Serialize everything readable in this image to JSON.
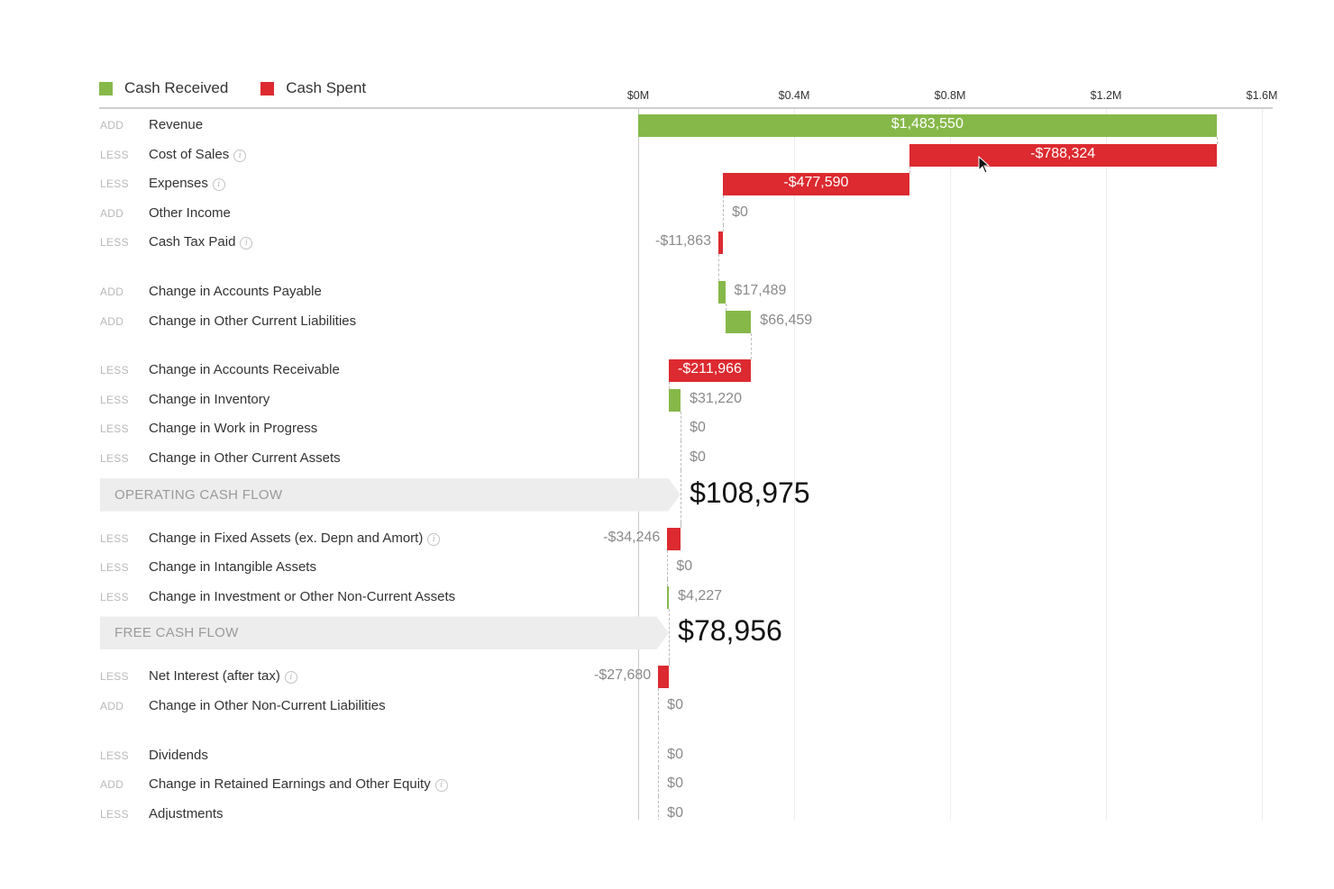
{
  "colors": {
    "received": "#86b849",
    "spent": "#dc2a30",
    "band": "#ededed"
  },
  "cursor_icon": "mouse-pointer-icon",
  "chart_data": {
    "type": "waterfall",
    "orientation": "horizontal",
    "legend": {
      "placement": "top-left",
      "items": [
        {
          "name": "Cash Received",
          "color": "#86b849"
        },
        {
          "name": "Cash Spent",
          "color": "#dc2a30"
        }
      ]
    },
    "x_axis": {
      "ticks": [
        "$0M",
        "$0.4M",
        "$0.8M",
        "$1.2M",
        "$1.6M"
      ],
      "tick_values": [
        0,
        400000,
        800000,
        1200000,
        1600000
      ],
      "range": [
        0,
        1600000
      ],
      "grid": true
    },
    "rows": [
      {
        "kind": "item",
        "op": "ADD",
        "name": "Revenue",
        "info": false,
        "value": 1483550,
        "label": "$1,483,550",
        "start": 0,
        "end": 1483550,
        "label_pos": "inside",
        "group_gap_after": false
      },
      {
        "kind": "item",
        "op": "LESS",
        "name": "Cost of Sales",
        "info": true,
        "value": -788324,
        "label": "-$788,324",
        "start": 1483550,
        "end": 695226,
        "label_pos": "inside",
        "group_gap_after": false
      },
      {
        "kind": "item",
        "op": "LESS",
        "name": "Expenses",
        "info": true,
        "value": -477590,
        "label": "-$477,590",
        "start": 695226,
        "end": 217636,
        "label_pos": "inside",
        "group_gap_after": false
      },
      {
        "kind": "item",
        "op": "ADD",
        "name": "Other Income",
        "info": false,
        "value": 0,
        "label": "$0",
        "start": 217636,
        "end": 217636,
        "label_pos": "right",
        "group_gap_after": false
      },
      {
        "kind": "item",
        "op": "LESS",
        "name": "Cash Tax Paid",
        "info": true,
        "value": -11863,
        "label": "-$11,863",
        "start": 217636,
        "end": 205773,
        "label_pos": "left",
        "group_gap_after": true
      },
      {
        "kind": "item",
        "op": "ADD",
        "name": "Change in Accounts Payable",
        "info": false,
        "value": 17489,
        "label": "$17,489",
        "start": 205773,
        "end": 223262,
        "label_pos": "right",
        "group_gap_after": false
      },
      {
        "kind": "item",
        "op": "ADD",
        "name": "Change in Other Current Liabilities",
        "info": false,
        "value": 66459,
        "label": "$66,459",
        "start": 223262,
        "end": 289721,
        "label_pos": "right",
        "group_gap_after": true
      },
      {
        "kind": "item",
        "op": "LESS",
        "name": "Change in Accounts Receivable",
        "info": false,
        "value": -211966,
        "label": "-$211,966",
        "start": 289721,
        "end": 77755,
        "label_pos": "inside",
        "group_gap_after": false
      },
      {
        "kind": "item",
        "op": "LESS",
        "name": "Change in Inventory",
        "info": false,
        "value": 31220,
        "label": "$31,220",
        "start": 77755,
        "end": 108975,
        "label_pos": "right",
        "group_gap_after": false
      },
      {
        "kind": "item",
        "op": "LESS",
        "name": "Change in Work in Progress",
        "info": false,
        "value": 0,
        "label": "$0",
        "start": 108975,
        "end": 108975,
        "label_pos": "right",
        "group_gap_after": false
      },
      {
        "kind": "item",
        "op": "LESS",
        "name": "Change in Other Current Assets",
        "info": false,
        "value": 0,
        "label": "$0",
        "start": 108975,
        "end": 108975,
        "label_pos": "right",
        "group_gap_after": false
      },
      {
        "kind": "subtotal",
        "name": "OPERATING CASH FLOW",
        "value": 108975,
        "label": "$108,975"
      },
      {
        "kind": "item",
        "op": "LESS",
        "name": "Change in Fixed Assets (ex. Depn and Amort)",
        "info": true,
        "value": -34246,
        "label": "-$34,246",
        "start": 108975,
        "end": 74729,
        "label_pos": "left",
        "group_gap_after": false
      },
      {
        "kind": "item",
        "op": "LESS",
        "name": "Change in Intangible Assets",
        "info": false,
        "value": 0,
        "label": "$0",
        "start": 74729,
        "end": 74729,
        "label_pos": "right",
        "group_gap_after": false
      },
      {
        "kind": "item",
        "op": "LESS",
        "name": "Change in Investment or Other Non-Current Assets",
        "info": false,
        "value": 4227,
        "label": "$4,227",
        "start": 74729,
        "end": 78956,
        "label_pos": "right",
        "group_gap_after": false
      },
      {
        "kind": "subtotal",
        "name": "FREE CASH FLOW",
        "value": 78956,
        "label": "$78,956"
      },
      {
        "kind": "item",
        "op": "LESS",
        "name": "Net Interest (after tax)",
        "info": true,
        "value": -27680,
        "label": "-$27,680",
        "start": 78956,
        "end": 51276,
        "label_pos": "left",
        "group_gap_after": false
      },
      {
        "kind": "item",
        "op": "ADD",
        "name": "Change in Other Non-Current Liabilities",
        "info": false,
        "value": 0,
        "label": "$0",
        "start": 51276,
        "end": 51276,
        "label_pos": "right",
        "group_gap_after": true
      },
      {
        "kind": "item",
        "op": "LESS",
        "name": "Dividends",
        "info": false,
        "value": 0,
        "label": "$0",
        "start": 51276,
        "end": 51276,
        "label_pos": "right",
        "group_gap_after": false
      },
      {
        "kind": "item",
        "op": "ADD",
        "name": "Change in Retained Earnings and Other Equity",
        "info": true,
        "value": 0,
        "label": "$0",
        "start": 51276,
        "end": 51276,
        "label_pos": "right",
        "group_gap_after": false
      },
      {
        "kind": "item",
        "op": "LESS",
        "name": "Adjustments",
        "info": false,
        "value": 0,
        "label": "$0",
        "start": 51276,
        "end": 51276,
        "label_pos": "right",
        "group_gap_after": false
      }
    ]
  }
}
